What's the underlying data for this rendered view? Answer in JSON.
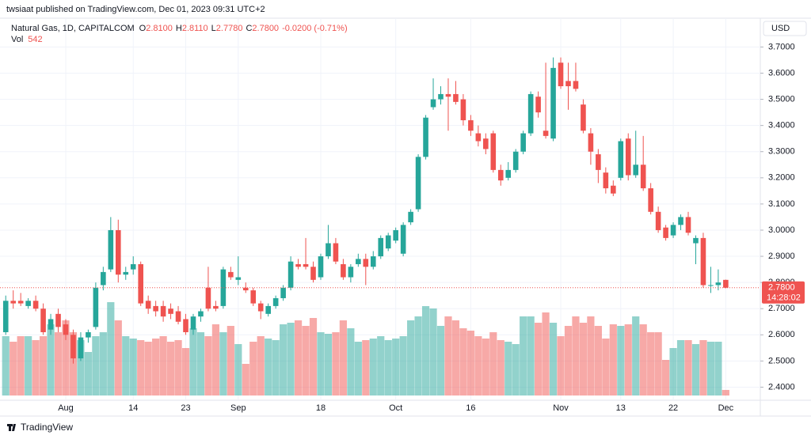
{
  "header": {
    "published": "twsiaat published on TradingView.com, Dec 01, 2023 09:31 UTC+2",
    "footer": "TradingView"
  },
  "chart_data": {
    "type": "candlestick",
    "legend": {
      "symbol": "Natural Gas, 1D, CAPITALCOM",
      "o_key": "O",
      "o": "2.8100",
      "h_key": "H",
      "h": "2.8110",
      "l_key": "L",
      "l": "2.7780",
      "c_key": "C",
      "c": "2.7800",
      "change": "-0.0200 (-0.71%)",
      "vol_key": "Vol"
    },
    "currency": "USD",
    "last_price_label": "2.7800",
    "countdown": "14:28:02",
    "up_color": "#26a69a",
    "down_color": "#ef5350",
    "categories": [
      null,
      null,
      null,
      null,
      null,
      null,
      null,
      null,
      "Aug",
      null,
      null,
      null,
      null,
      null,
      null,
      null,
      null,
      "14",
      null,
      null,
      null,
      null,
      null,
      null,
      "23",
      null,
      null,
      null,
      null,
      null,
      null,
      "Sep",
      null,
      null,
      null,
      null,
      null,
      null,
      null,
      null,
      null,
      null,
      "18",
      null,
      null,
      null,
      null,
      null,
      null,
      null,
      null,
      null,
      "Oct",
      null,
      null,
      null,
      null,
      null,
      null,
      null,
      null,
      null,
      "16",
      null,
      null,
      null,
      null,
      null,
      null,
      null,
      null,
      null,
      null,
      null,
      "Nov",
      null,
      null,
      null,
      null,
      null,
      null,
      null,
      "13",
      null,
      null,
      null,
      null,
      null,
      null,
      "22",
      null,
      null,
      null,
      null,
      null,
      null,
      "Dec"
    ],
    "open": [
      2.61,
      2.73,
      2.73,
      2.71,
      2.73,
      2.7,
      2.62,
      2.68,
      2.64,
      2.6,
      2.51,
      2.59,
      2.63,
      2.79,
      2.85,
      3.0,
      2.83,
      2.85,
      2.87,
      2.73,
      2.71,
      2.71,
      2.7,
      2.69,
      2.66,
      2.62,
      2.67,
      2.78,
      2.71,
      2.71,
      2.84,
      2.81,
      2.78,
      2.77,
      2.72,
      2.68,
      2.71,
      2.74,
      2.78,
      2.87,
      2.87,
      2.86,
      2.82,
      2.9,
      2.95,
      2.87,
      2.82,
      2.87,
      2.89,
      2.86,
      2.9,
      2.93,
      2.96,
      2.91,
      3.03,
      3.08,
      3.28,
      3.47,
      3.5,
      3.52,
      3.52,
      3.5,
      3.42,
      3.37,
      3.35,
      3.37,
      3.23,
      3.2,
      3.23,
      3.3,
      3.37,
      3.51,
      3.38,
      3.35,
      3.64,
      3.57,
      3.57,
      3.48,
      3.37,
      3.29,
      3.22,
      3.17,
      3.2,
      3.35,
      3.21,
      3.25,
      3.16,
      3.07,
      3.01,
      2.98,
      3.02,
      3.05,
      2.95,
      2.97,
      2.79,
      2.79,
      2.81
    ],
    "high": [
      2.75,
      2.77,
      2.76,
      2.74,
      2.75,
      2.72,
      2.68,
      2.7,
      2.66,
      2.62,
      2.61,
      2.62,
      2.8,
      2.86,
      3.05,
      3.04,
      2.86,
      2.9,
      2.88,
      2.75,
      2.73,
      2.73,
      2.72,
      2.71,
      2.68,
      2.68,
      2.7,
      2.86,
      2.73,
      2.86,
      2.86,
      2.9,
      2.8,
      2.78,
      2.73,
      2.72,
      2.75,
      2.79,
      2.9,
      2.89,
      2.97,
      2.88,
      2.91,
      3.02,
      2.97,
      2.89,
      2.87,
      2.91,
      2.91,
      2.92,
      2.98,
      2.99,
      3.01,
      3.03,
      3.08,
      3.29,
      3.44,
      3.58,
      3.55,
      3.58,
      3.57,
      3.52,
      3.44,
      3.4,
      3.37,
      3.38,
      3.25,
      3.26,
      3.31,
      3.38,
      3.53,
      3.53,
      3.64,
      3.66,
      3.66,
      3.64,
      3.64,
      3.5,
      3.39,
      3.31,
      3.24,
      3.19,
      3.35,
      3.37,
      3.38,
      3.36,
      3.18,
      3.09,
      3.02,
      3.03,
      3.06,
      3.07,
      2.98,
      2.99,
      2.86,
      2.85,
      2.811
    ],
    "low": [
      2.6,
      2.7,
      2.71,
      2.7,
      2.69,
      2.6,
      2.6,
      2.61,
      2.58,
      2.49,
      2.5,
      2.57,
      2.62,
      2.77,
      2.84,
      2.8,
      2.81,
      2.83,
      2.71,
      2.68,
      2.67,
      2.65,
      2.66,
      2.64,
      2.6,
      2.6,
      2.65,
      2.69,
      2.69,
      2.7,
      2.81,
      2.79,
      2.76,
      2.71,
      2.66,
      2.67,
      2.7,
      2.73,
      2.77,
      2.85,
      2.85,
      2.8,
      2.81,
      2.89,
      2.87,
      2.81,
      2.8,
      2.86,
      2.79,
      2.85,
      2.89,
      2.92,
      2.95,
      2.9,
      3.02,
      3.07,
      3.27,
      3.46,
      3.48,
      3.38,
      3.48,
      3.4,
      3.36,
      3.32,
      3.29,
      3.22,
      3.17,
      3.19,
      3.22,
      3.29,
      3.36,
      3.43,
      3.35,
      3.34,
      3.54,
      3.46,
      3.53,
      3.37,
      3.25,
      3.18,
      3.14,
      3.13,
      3.19,
      3.19,
      3.2,
      3.15,
      3.06,
      2.99,
      2.96,
      2.97,
      3.0,
      2.98,
      2.87,
      2.78,
      2.76,
      2.77,
      2.778
    ],
    "close": [
      2.73,
      2.72,
      2.72,
      2.73,
      2.7,
      2.61,
      2.66,
      2.63,
      2.6,
      2.51,
      2.59,
      2.61,
      2.78,
      2.84,
      3.0,
      2.83,
      2.84,
      2.87,
      2.72,
      2.7,
      2.69,
      2.67,
      2.68,
      2.65,
      2.61,
      2.67,
      2.69,
      2.7,
      2.7,
      2.85,
      2.82,
      2.82,
      2.77,
      2.72,
      2.69,
      2.71,
      2.74,
      2.78,
      2.88,
      2.86,
      2.86,
      2.81,
      2.9,
      2.95,
      2.88,
      2.82,
      2.86,
      2.89,
      2.86,
      2.9,
      2.97,
      2.98,
      3.0,
      3.02,
      3.07,
      3.28,
      3.43,
      3.5,
      3.52,
      3.51,
      3.49,
      3.42,
      3.38,
      3.34,
      3.31,
      3.23,
      3.19,
      3.23,
      3.3,
      3.37,
      3.52,
      3.45,
      3.36,
      3.62,
      3.55,
      3.55,
      3.54,
      3.38,
      3.3,
      3.23,
      3.16,
      3.14,
      3.34,
      3.21,
      3.25,
      3.16,
      3.07,
      3.0,
      2.97,
      3.02,
      3.05,
      2.99,
      2.97,
      2.79,
      2.79,
      2.8,
      2.78
    ],
    "volume": [
      5775,
      5236,
      5775,
      5775,
      5390,
      5775,
      6930,
      6160,
      7315,
      6160,
      5390,
      4235,
      5775,
      6160,
      9086,
      7315,
      5775,
      5544,
      5390,
      5236,
      5544,
      5775,
      5236,
      5390,
      4620,
      6545,
      6160,
      5775,
      6930,
      6160,
      6776,
      5005,
      3080,
      5236,
      5775,
      5544,
      5390,
      6930,
      7084,
      7315,
      6776,
      7546,
      6160,
      6006,
      6160,
      7315,
      6545,
      5236,
      5390,
      5544,
      5775,
      5390,
      5544,
      5775,
      7315,
      7700,
      8701,
      8470,
      6776,
      7700,
      7315,
      6545,
      6314,
      5775,
      5544,
      6160,
      5390,
      5236,
      5005,
      7700,
      7700,
      7084,
      8085,
      7084,
      5775,
      6776,
      7700,
      7084,
      7700,
      6776,
      5544,
      6930,
      6776,
      6930,
      7700,
      6930,
      6160,
      6160,
      3465,
      4620,
      5390,
      5390,
      5005,
      5390,
      5236,
      5236,
      542
    ],
    "ylim": [
      2.35,
      3.81
    ],
    "yticks": [
      {
        "value": 2.4,
        "label": "2.4000"
      },
      {
        "value": 2.5,
        "label": "2.5000"
      },
      {
        "value": 2.6,
        "label": "2.6000"
      },
      {
        "value": 2.7,
        "label": "2.7000"
      },
      {
        "value": 2.8,
        "label": "2.8000"
      },
      {
        "value": 2.9,
        "label": "2.9000"
      },
      {
        "value": 3.0,
        "label": "3.0000"
      },
      {
        "value": 3.1,
        "label": "3.1000"
      },
      {
        "value": 3.2,
        "label": "3.2000"
      },
      {
        "value": 3.3,
        "label": "3.3000"
      },
      {
        "value": 3.4,
        "label": "3.4000"
      },
      {
        "value": 3.5,
        "label": "3.5000"
      },
      {
        "value": 3.6,
        "label": "3.6000"
      },
      {
        "value": 3.7,
        "label": "3.7000"
      }
    ],
    "grid": true
  }
}
